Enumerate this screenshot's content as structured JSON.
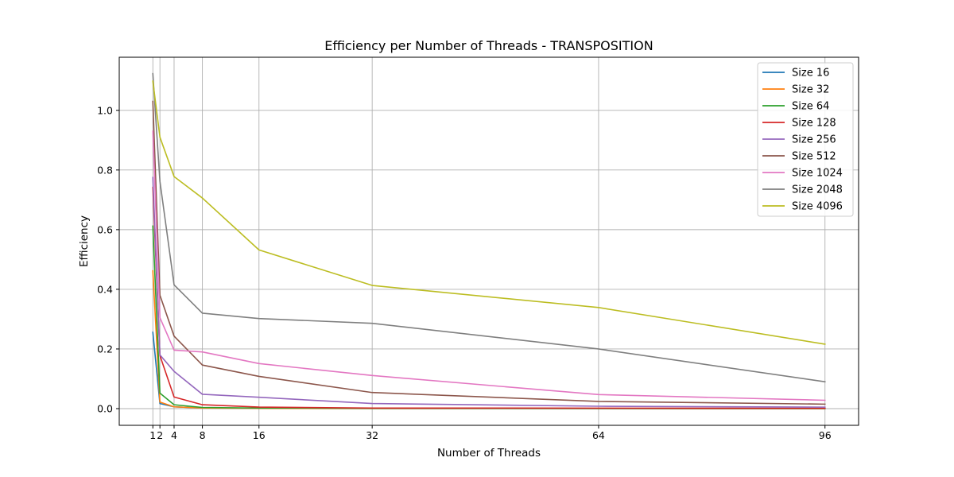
{
  "chart_data": {
    "type": "line",
    "title": "Efficiency per Number of Threads - TRANSPOSITION",
    "xlabel": "Number of Threads",
    "ylabel": "Efficiency",
    "x": [
      1,
      2,
      4,
      8,
      16,
      32,
      64,
      96
    ],
    "x_ticks": [
      1,
      2,
      4,
      8,
      16,
      32,
      64,
      96
    ],
    "y_ticks": [
      0.0,
      0.2,
      0.4,
      0.6,
      0.8,
      1.0
    ],
    "y_tick_labels": [
      "0.0",
      "0.2",
      "0.4",
      "0.6",
      "0.8",
      "1.0"
    ],
    "xlim": [
      -3.75,
      100.75
    ],
    "ylim": [
      -0.056,
      1.178
    ],
    "grid": true,
    "legend_position": "top-right",
    "series": [
      {
        "name": "Size 16",
        "color": "#1f77b4",
        "values": [
          0.256,
          0.017,
          0.006,
          0.002,
          0.001,
          0.0005,
          0.0003,
          0.0002
        ]
      },
      {
        "name": "Size 32",
        "color": "#ff7f0e",
        "values": [
          0.462,
          0.022,
          0.006,
          0.002,
          0.001,
          0.0005,
          0.0003,
          0.0002
        ]
      },
      {
        "name": "Size 64",
        "color": "#2ca02c",
        "values": [
          0.612,
          0.052,
          0.013,
          0.004,
          0.002,
          0.001,
          0.0005,
          0.0003
        ]
      },
      {
        "name": "Size 128",
        "color": "#d62728",
        "values": [
          0.742,
          0.178,
          0.039,
          0.013,
          0.005,
          0.002,
          0.0015,
          0.001
        ]
      },
      {
        "name": "Size 256",
        "color": "#9467bd",
        "values": [
          0.775,
          0.18,
          0.125,
          0.048,
          0.038,
          0.017,
          0.008,
          0.005
        ]
      },
      {
        "name": "Size 512",
        "color": "#8c564b",
        "values": [
          1.03,
          0.38,
          0.243,
          0.146,
          0.108,
          0.054,
          0.024,
          0.015
        ]
      },
      {
        "name": "Size 1024",
        "color": "#e377c2",
        "values": [
          0.93,
          0.305,
          0.196,
          0.19,
          0.151,
          0.111,
          0.047,
          0.028
        ]
      },
      {
        "name": "Size 2048",
        "color": "#7f7f7f",
        "values": [
          1.123,
          0.762,
          0.415,
          0.32,
          0.302,
          0.286,
          0.2,
          0.09
        ]
      },
      {
        "name": "Size 4096",
        "color": "#bcbd22",
        "values": [
          1.098,
          0.91,
          0.778,
          0.706,
          0.532,
          0.413,
          0.339,
          0.216
        ]
      }
    ]
  }
}
